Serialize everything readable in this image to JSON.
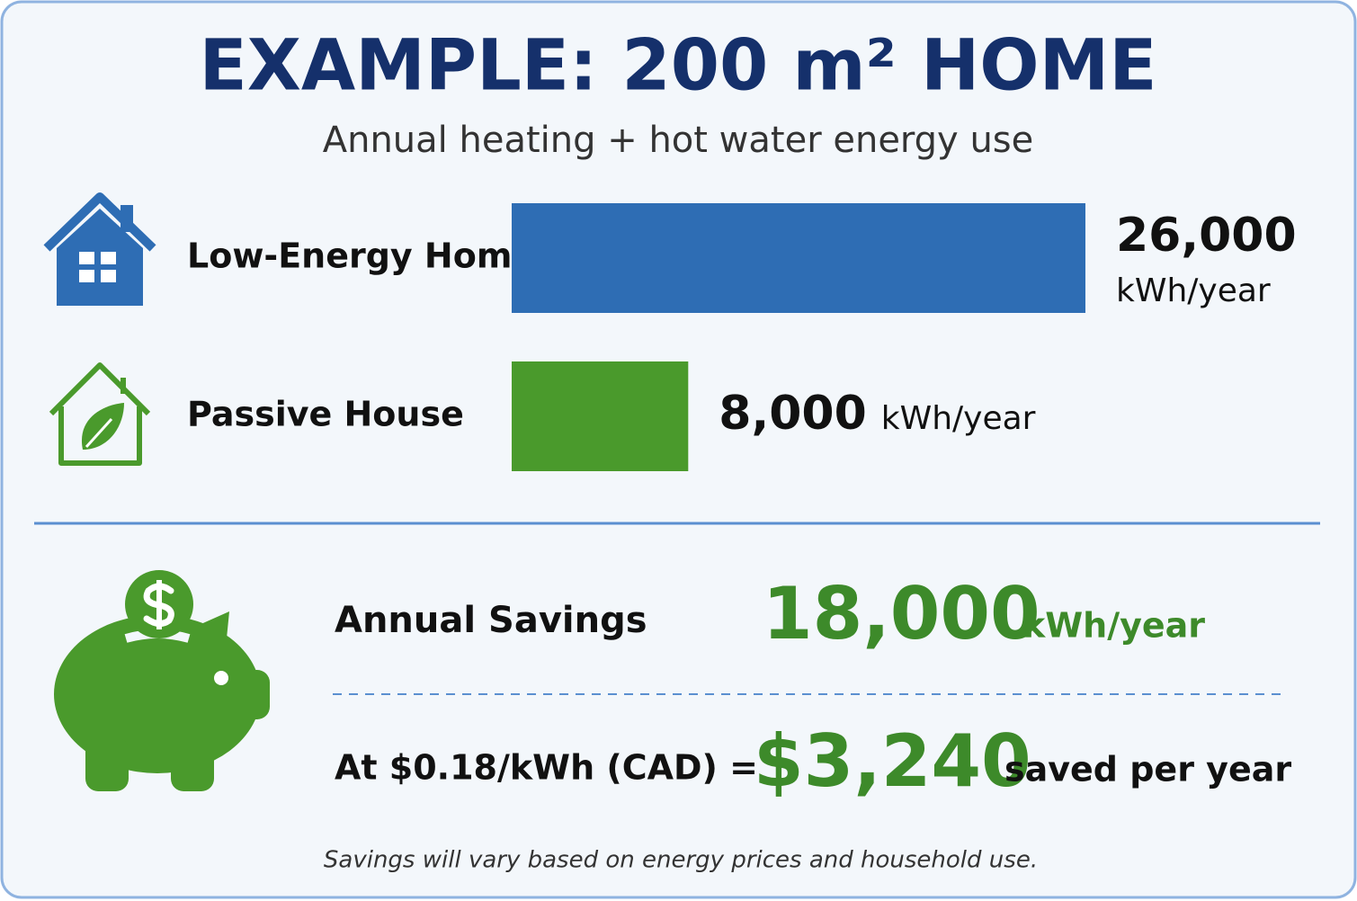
{
  "chart_data": {
    "type": "bar",
    "title": "EXAMPLE: 200 m² HOME",
    "subtitle": "Annual heating + hot water energy use",
    "categories": [
      "Low-Energy Home",
      "Passive House"
    ],
    "values": [
      26000,
      8000
    ],
    "value_labels": [
      "26,000",
      "8,000"
    ],
    "unit": "kWh/year",
    "colors": [
      "#2e6db4",
      "#4a9a2c"
    ]
  },
  "savings": {
    "label": "Annual Savings",
    "value": "18,000",
    "unit": "kWh/year",
    "cost_label": "At $0.18/kWh (CAD) =",
    "cost_value": "$3,240",
    "cost_unit": "saved per year"
  },
  "footnote": "Savings will vary based on energy prices and household use."
}
